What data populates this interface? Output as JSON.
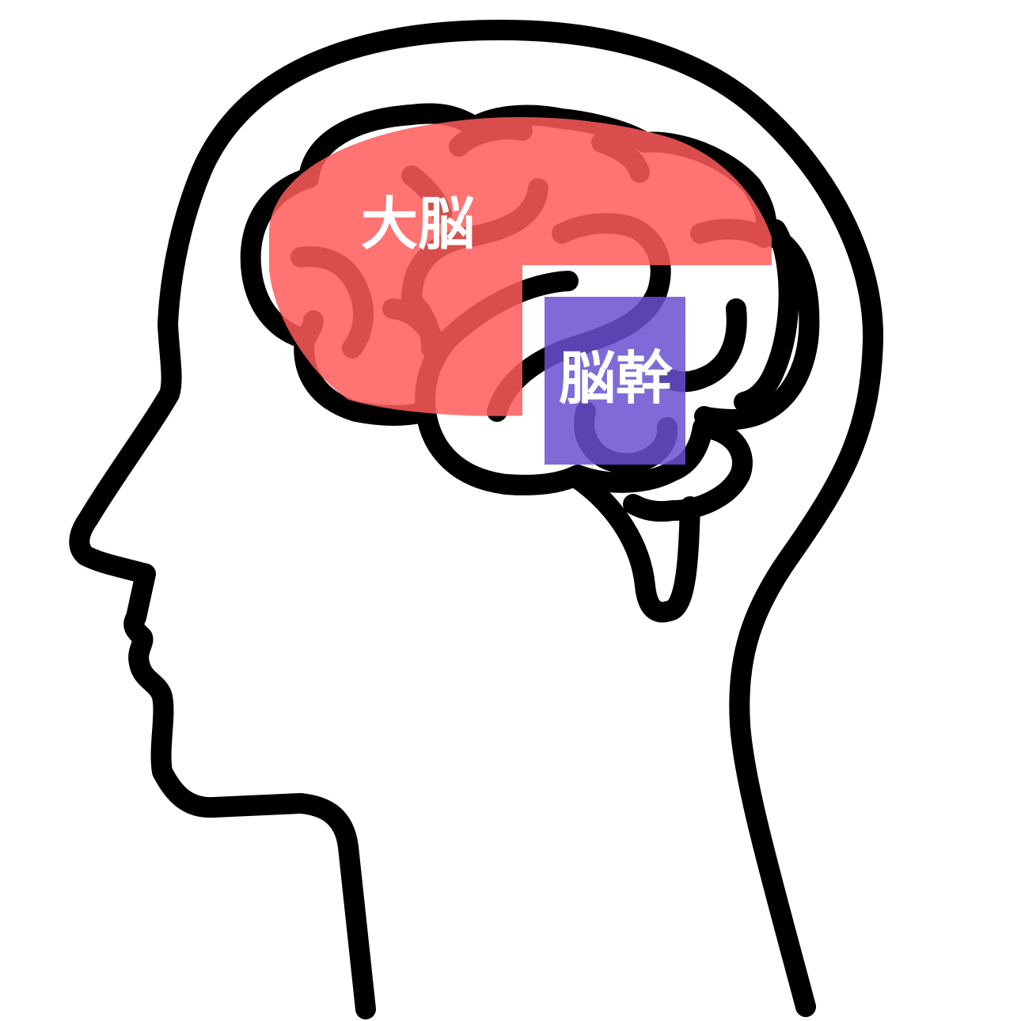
{
  "regions": [
    {
      "id": "cerebrum",
      "label": "大脳",
      "color": "#FF5A5A"
    },
    {
      "id": "brainstem",
      "label": "脳幹",
      "color": "#6A50D0"
    }
  ],
  "outline_color": "#000000",
  "background": "#FFFFFF"
}
